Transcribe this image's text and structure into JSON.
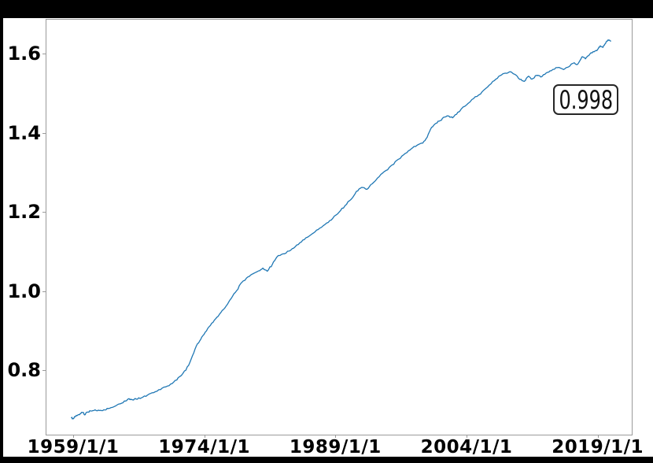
{
  "window": {
    "background_color": "#000000",
    "figure_background_color": "#ffffff",
    "spine_color": "#9a9a9a"
  },
  "annotation": {
    "text": "0.998"
  },
  "chart_data": {
    "type": "line",
    "title": "",
    "xlabel": "",
    "ylabel": "",
    "grid": false,
    "legend": null,
    "line_color": "#1f77b4",
    "line_width": 1.3,
    "x_tick_labels": [
      "1959/1/1",
      "1974/1/1",
      "1989/1/1",
      "2004/1/1",
      "2019/1/1"
    ],
    "x_tick_years": [
      1959,
      1974,
      1989,
      2004,
      2019
    ],
    "y_tick_labels": [
      "0.8",
      "1.0",
      "1.2",
      "1.4",
      "1.6"
    ],
    "y_tick_values": [
      0.8,
      1.0,
      1.2,
      1.4,
      1.6
    ],
    "x_range_years": [
      1955.85,
      2022.9
    ],
    "y_range": [
      0.637,
      1.688
    ],
    "noise_amplitude": 0.002,
    "series": [
      {
        "name": "series-1",
        "points": [
          [
            1958.8,
            0.68
          ],
          [
            1959.0,
            0.677
          ],
          [
            1959.2,
            0.682
          ],
          [
            1959.5,
            0.686
          ],
          [
            1959.8,
            0.69
          ],
          [
            1960.1,
            0.693
          ],
          [
            1960.3,
            0.687
          ],
          [
            1960.6,
            0.694
          ],
          [
            1961.0,
            0.697
          ],
          [
            1961.5,
            0.7
          ],
          [
            1962.0,
            0.698
          ],
          [
            1962.5,
            0.7
          ],
          [
            1963.0,
            0.703
          ],
          [
            1963.7,
            0.708
          ],
          [
            1964.4,
            0.715
          ],
          [
            1965.0,
            0.722
          ],
          [
            1965.4,
            0.728
          ],
          [
            1965.8,
            0.725
          ],
          [
            1966.2,
            0.727
          ],
          [
            1966.8,
            0.73
          ],
          [
            1967.5,
            0.737
          ],
          [
            1968.2,
            0.743
          ],
          [
            1969.0,
            0.751
          ],
          [
            1969.8,
            0.76
          ],
          [
            1970.5,
            0.77
          ],
          [
            1971.2,
            0.784
          ],
          [
            1971.9,
            0.8
          ],
          [
            1972.5,
            0.828
          ],
          [
            1973.1,
            0.862
          ],
          [
            1973.6,
            0.878
          ],
          [
            1974.1,
            0.896
          ],
          [
            1974.7,
            0.913
          ],
          [
            1975.3,
            0.93
          ],
          [
            1975.9,
            0.946
          ],
          [
            1976.5,
            0.962
          ],
          [
            1977.1,
            0.982
          ],
          [
            1977.7,
            1.001
          ],
          [
            1978.3,
            1.022
          ],
          [
            1979.0,
            1.036
          ],
          [
            1979.6,
            1.044
          ],
          [
            1980.2,
            1.051
          ],
          [
            1980.7,
            1.058
          ],
          [
            1981.2,
            1.05
          ],
          [
            1981.8,
            1.068
          ],
          [
            1982.3,
            1.086
          ],
          [
            1983.0,
            1.094
          ],
          [
            1983.7,
            1.101
          ],
          [
            1984.4,
            1.112
          ],
          [
            1985.1,
            1.124
          ],
          [
            1985.8,
            1.136
          ],
          [
            1986.5,
            1.147
          ],
          [
            1987.2,
            1.159
          ],
          [
            1988.0,
            1.172
          ],
          [
            1988.7,
            1.184
          ],
          [
            1989.4,
            1.199
          ],
          [
            1990.1,
            1.216
          ],
          [
            1990.8,
            1.232
          ],
          [
            1991.4,
            1.252
          ],
          [
            1992.0,
            1.262
          ],
          [
            1992.6,
            1.257
          ],
          [
            1993.2,
            1.271
          ],
          [
            1994.0,
            1.289
          ],
          [
            1994.8,
            1.305
          ],
          [
            1995.5,
            1.319
          ],
          [
            1996.2,
            1.333
          ],
          [
            1997.0,
            1.348
          ],
          [
            1997.7,
            1.36
          ],
          [
            1998.3,
            1.368
          ],
          [
            1999.0,
            1.374
          ],
          [
            1999.5,
            1.389
          ],
          [
            2000.0,
            1.414
          ],
          [
            2000.5,
            1.424
          ],
          [
            2001.0,
            1.431
          ],
          [
            2001.5,
            1.44
          ],
          [
            2002.0,
            1.442
          ],
          [
            2002.4,
            1.438
          ],
          [
            2003.0,
            1.452
          ],
          [
            2003.8,
            1.467
          ],
          [
            2004.6,
            1.484
          ],
          [
            2005.4,
            1.496
          ],
          [
            2006.2,
            1.512
          ],
          [
            2007.0,
            1.53
          ],
          [
            2007.7,
            1.543
          ],
          [
            2008.3,
            1.55
          ],
          [
            2008.9,
            1.554
          ],
          [
            2009.5,
            1.548
          ],
          [
            2010.1,
            1.535
          ],
          [
            2010.6,
            1.53
          ],
          [
            2011.1,
            1.543
          ],
          [
            2011.5,
            1.536
          ],
          [
            2012.0,
            1.545
          ],
          [
            2012.5,
            1.541
          ],
          [
            2013.1,
            1.551
          ],
          [
            2013.7,
            1.557
          ],
          [
            2014.4,
            1.565
          ],
          [
            2015.1,
            1.56
          ],
          [
            2015.7,
            1.567
          ],
          [
            2016.2,
            1.576
          ],
          [
            2016.7,
            1.573
          ],
          [
            2017.2,
            1.592
          ],
          [
            2017.6,
            1.587
          ],
          [
            2018.1,
            1.599
          ],
          [
            2018.6,
            1.605
          ],
          [
            2019.0,
            1.611
          ],
          [
            2019.3,
            1.62
          ],
          [
            2019.6,
            1.616
          ],
          [
            2019.9,
            1.626
          ],
          [
            2020.2,
            1.635
          ],
          [
            2020.5,
            1.632
          ]
        ]
      }
    ]
  }
}
